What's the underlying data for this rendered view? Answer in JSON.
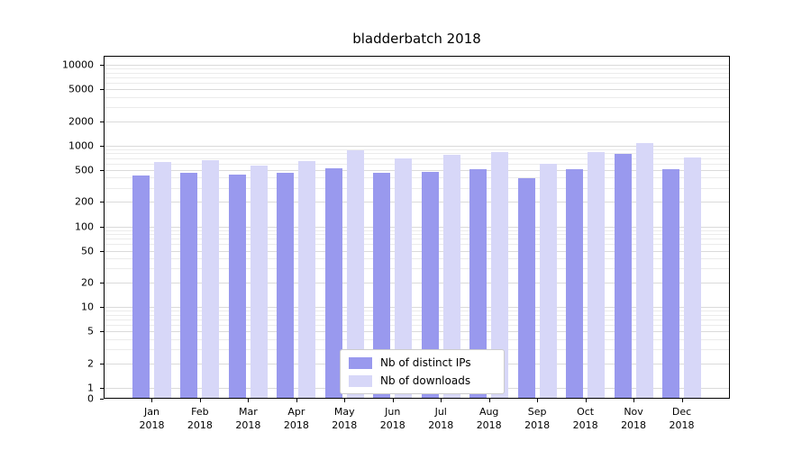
{
  "title": "bladderbatch 2018",
  "chart_data": {
    "type": "bar",
    "title": "bladderbatch 2018",
    "scale": "symlog",
    "categories": [
      "Jan",
      "Feb",
      "Mar",
      "Apr",
      "May",
      "Jun",
      "Jul",
      "Aug",
      "Sep",
      "Oct",
      "Nov",
      "Dec"
    ],
    "year": "2018",
    "series": [
      {
        "name": "Nb of distinct IPs",
        "color": "#9999ee",
        "values": [
          430,
          460,
          440,
          460,
          520,
          460,
          470,
          510,
          390,
          510,
          780,
          510
        ]
      },
      {
        "name": "Nb of downloads",
        "color": "#d7d7f8",
        "values": [
          620,
          660,
          570,
          640,
          880,
          700,
          770,
          830,
          590,
          830,
          1080,
          720
        ]
      }
    ],
    "yticks": [
      0,
      1,
      2,
      5,
      10,
      20,
      50,
      100,
      200,
      500,
      1000,
      2000,
      5000,
      10000
    ],
    "ylim": [
      0,
      13000
    ],
    "xlabel": "",
    "ylabel": "",
    "grid": true,
    "legend_position": "lower center",
    "colors": {
      "grid_major": "#dadada",
      "grid_minor": "#ebebeb",
      "axis": "#000000",
      "background": "#ffffff"
    }
  }
}
